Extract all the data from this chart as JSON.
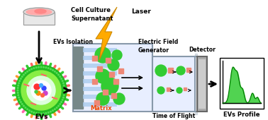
{
  "bg_color": "#ffffff",
  "figure_size": [
    3.78,
    1.7
  ],
  "dpi": 100,
  "cell_culture_label": [
    "Cell Culture",
    "Supernatant"
  ],
  "evs_isolation_label": "EVs Isolation",
  "evs_label": "EVs",
  "laser_label": "Laser",
  "electric_field_label": [
    "Electric Field",
    "Generator"
  ],
  "matrix_label": "Matrix",
  "tof_label": "Time of Flight",
  "detector_label": "Detector",
  "evs_profile_label": "EVs Profile",
  "green_color": "#33cc33",
  "salmon_color": "#ee8877",
  "gold_color": "#ffaa00",
  "dark_gold": "#cc8800"
}
